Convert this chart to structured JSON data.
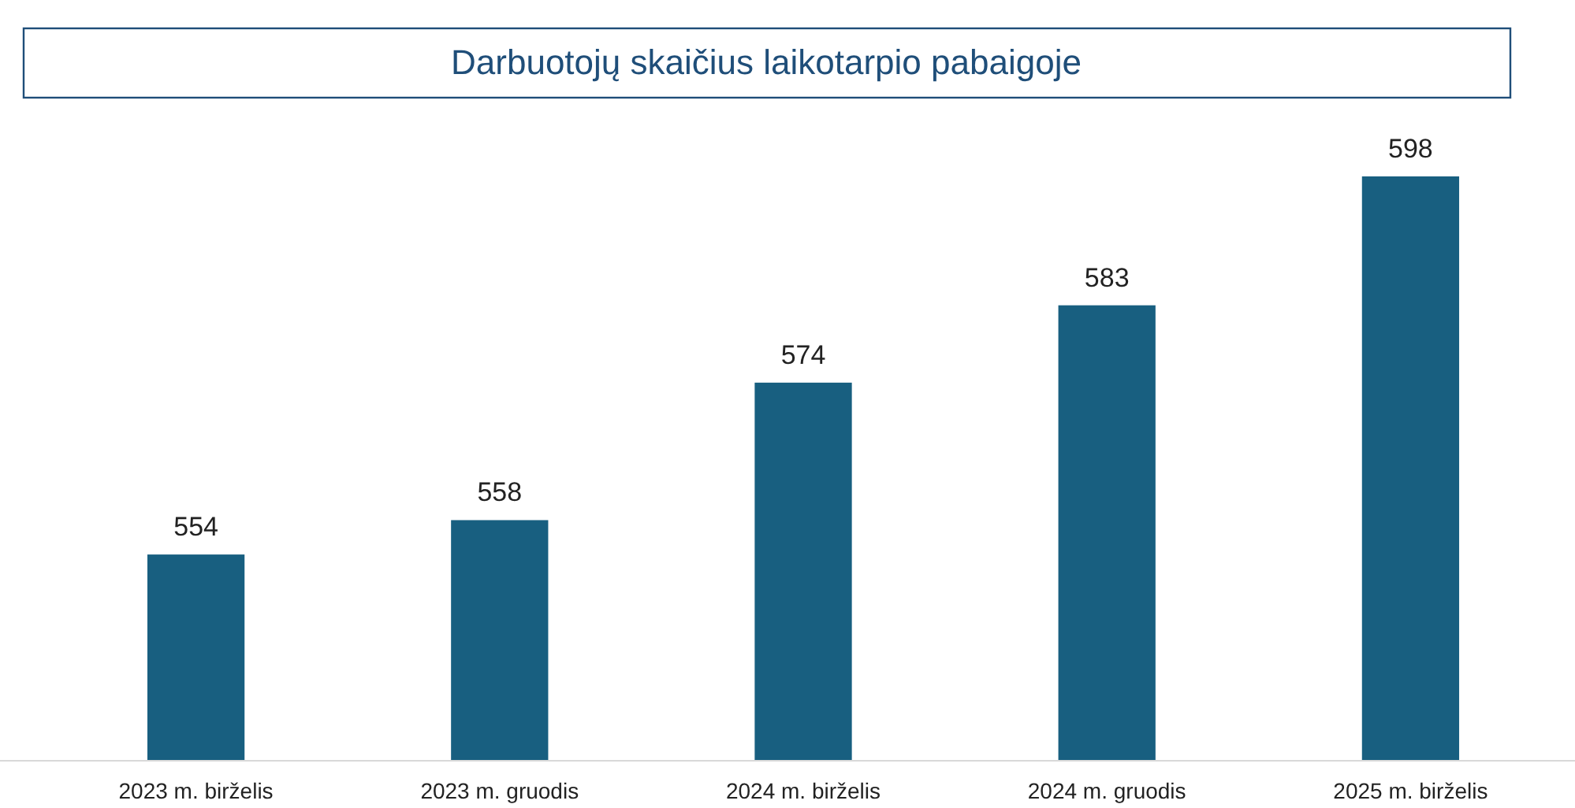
{
  "chart_data": {
    "type": "bar",
    "title": "Darbuotojų skaičius laikotarpio pabaigoje",
    "categories": [
      "2023 m. birželis",
      "2023 m. gruodis",
      "2024 m. birželis",
      "2024 m. gruodis",
      "2025 m. birželis"
    ],
    "values": [
      554,
      558,
      574,
      583,
      598
    ],
    "color": "#185f80",
    "ylim": [
      530,
      598
    ],
    "data_labels": true,
    "tick_labels": "x"
  }
}
